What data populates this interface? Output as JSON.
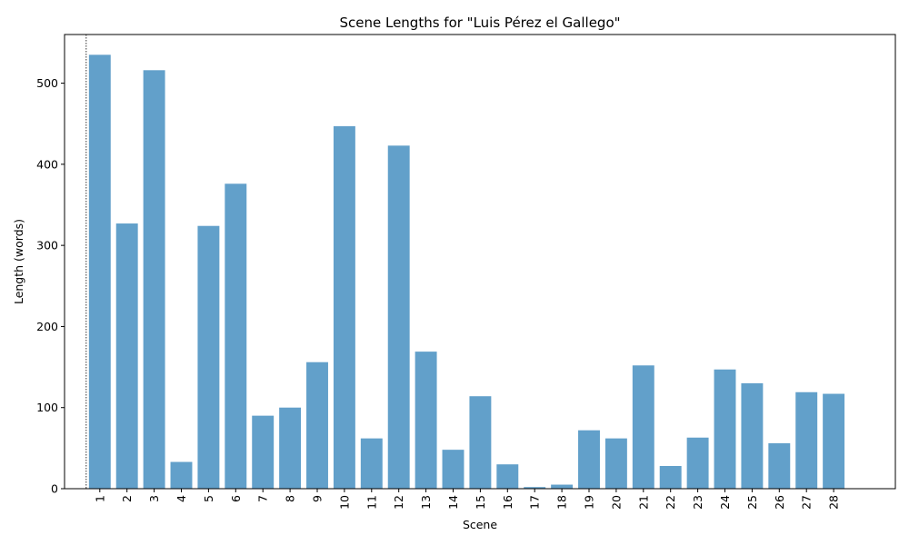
{
  "chart_data": {
    "type": "bar",
    "title": "Scene Lengths for \"Luis Pérez el Gallego\"",
    "xlabel": "Scene",
    "ylabel": "Length (words)",
    "categories": [
      "1",
      "2",
      "3",
      "4",
      "5",
      "6",
      "7",
      "8",
      "9",
      "10",
      "11",
      "12",
      "13",
      "14",
      "15",
      "16",
      "17",
      "18",
      "19",
      "20",
      "21",
      "22",
      "23",
      "24",
      "25",
      "26",
      "27",
      "28"
    ],
    "values": [
      535,
      327,
      516,
      33,
      324,
      376,
      90,
      100,
      156,
      447,
      62,
      423,
      169,
      48,
      114,
      30,
      2,
      5,
      72,
      62,
      152,
      28,
      63,
      147,
      130,
      56,
      119,
      117
    ],
    "ylim": [
      0,
      560
    ],
    "yticks": [
      0,
      100,
      200,
      300,
      400,
      500
    ],
    "bar_color": "#1f77b4",
    "bar_opacity": 0.7,
    "grid": false,
    "legend": "none"
  }
}
